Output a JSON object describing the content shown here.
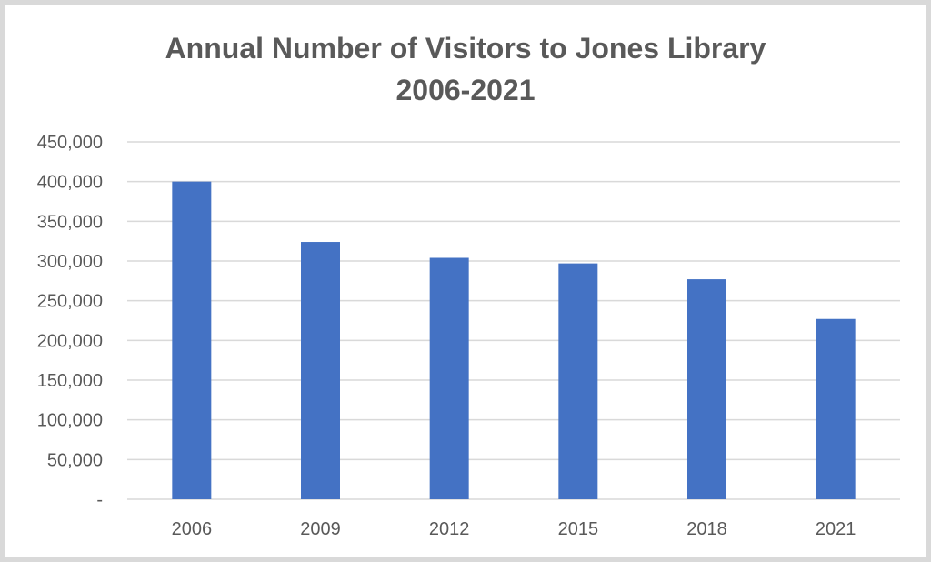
{
  "chart_data": {
    "type": "bar",
    "title": "Annual Number of Visitors to Jones Library",
    "subtitle": "2006-2021",
    "xlabel": "",
    "ylabel": "",
    "categories": [
      "2006",
      "2009",
      "2012",
      "2015",
      "2018",
      "2021"
    ],
    "series": [
      {
        "values": [
          400000,
          324000,
          304000,
          297000,
          277000,
          227000
        ]
      }
    ],
    "ylim": [
      0,
      450000
    ],
    "yticks": [
      0,
      50000,
      100000,
      150000,
      200000,
      250000,
      300000,
      350000,
      400000,
      450000
    ],
    "ytick_labels": [
      "-",
      "50,000",
      "100,000",
      "150,000",
      "200,000",
      "250,000",
      "300,000",
      "350,000",
      "400,000",
      "450,000"
    ],
    "grid": true,
    "legend": "none",
    "colors": {
      "bar": "#4472C4",
      "grid": "#d9d9d9",
      "text": "#595959",
      "frame": "#d9d9d9"
    }
  }
}
